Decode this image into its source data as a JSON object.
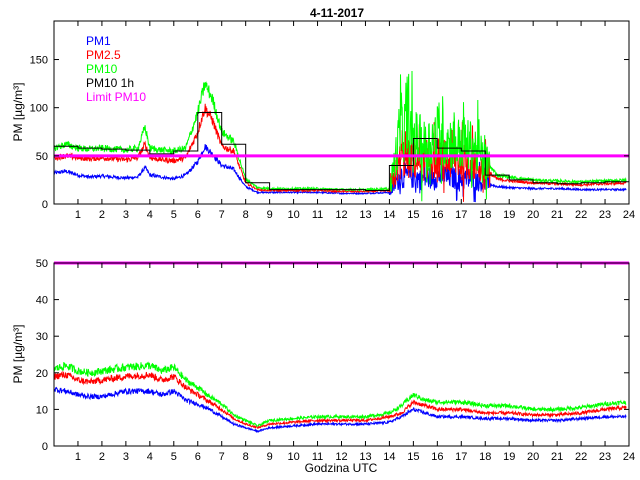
{
  "title": "4-11-2017",
  "chart_data": [
    {
      "type": "line",
      "title": "4-11-2017",
      "ylabel": "PM [µg/m³]",
      "xlabel": "",
      "xlim": [
        0,
        24
      ],
      "ylim": [
        0,
        190
      ],
      "xticks": [
        "1",
        "2",
        "3",
        "4",
        "5",
        "6",
        "7",
        "8",
        "9",
        "10",
        "11",
        "12",
        "13",
        "14",
        "15",
        "16",
        "17",
        "18",
        "19",
        "20",
        "21",
        "22",
        "23",
        "24"
      ],
      "yticks": [
        0,
        50,
        100,
        150
      ],
      "legend": [
        "PM1",
        "PM2.5",
        "PM10",
        "PM10 1h",
        "Limit PM10"
      ],
      "legend_position": "top-left",
      "colors": {
        "PM1": "#0000ff",
        "PM2.5": "#ff0000",
        "PM10": "#00ff00",
        "PM10 1h": "#000000",
        "Limit PM10": "#ff00ff"
      },
      "limit": 50,
      "series": [
        {
          "name": "PM1",
          "x": [
            0,
            0.5,
            1,
            1.5,
            2,
            2.5,
            3,
            3.5,
            3.8,
            4,
            4.5,
            5,
            5.5,
            6,
            6.3,
            6.6,
            7,
            7.5,
            8,
            8.5,
            9,
            10,
            11,
            12,
            13,
            14,
            14.5,
            15,
            15.5,
            16,
            16.5,
            17,
            17.5,
            18,
            18.5,
            19,
            20,
            21,
            22,
            23,
            24
          ],
          "y": [
            32,
            34,
            30,
            28,
            29,
            28,
            27,
            28,
            38,
            30,
            28,
            26,
            30,
            44,
            60,
            52,
            40,
            36,
            18,
            12,
            12,
            12,
            12,
            11,
            11,
            12,
            30,
            28,
            26,
            30,
            28,
            26,
            25,
            22,
            18,
            17,
            16,
            16,
            15,
            15,
            15
          ]
        },
        {
          "name": "PM2.5",
          "x": [
            0,
            0.5,
            1,
            1.5,
            2,
            2.5,
            3,
            3.5,
            3.8,
            4,
            4.5,
            5,
            5.5,
            6,
            6.3,
            6.6,
            7,
            7.5,
            8,
            8.5,
            9,
            10,
            11,
            12,
            13,
            14,
            14.5,
            15,
            15.5,
            16,
            16.5,
            17,
            17.5,
            18,
            18.5,
            19,
            20,
            21,
            22,
            23,
            24
          ],
          "y": [
            48,
            50,
            48,
            47,
            48,
            47,
            46,
            48,
            62,
            48,
            46,
            45,
            48,
            75,
            100,
            88,
            60,
            55,
            22,
            15,
            14,
            14,
            14,
            13,
            13,
            14,
            48,
            45,
            42,
            48,
            45,
            44,
            42,
            35,
            26,
            24,
            22,
            21,
            20,
            21,
            22
          ]
        },
        {
          "name": "PM10",
          "x": [
            0,
            0.5,
            1,
            1.5,
            2,
            2.5,
            3,
            3.5,
            3.8,
            4,
            4.5,
            5,
            5.5,
            6,
            6.3,
            6.6,
            7,
            7.5,
            8,
            8.5,
            9,
            10,
            11,
            12,
            13,
            14,
            14.5,
            15,
            15.5,
            16,
            16.5,
            17,
            17.5,
            18,
            18.5,
            19,
            20,
            21,
            22,
            23,
            24
          ],
          "y": [
            58,
            62,
            58,
            57,
            58,
            57,
            56,
            58,
            80,
            58,
            56,
            55,
            58,
            95,
            125,
            110,
            75,
            65,
            26,
            17,
            16,
            16,
            16,
            15,
            15,
            16,
            80,
            70,
            60,
            72,
            65,
            62,
            60,
            45,
            30,
            28,
            25,
            24,
            23,
            24,
            25
          ]
        },
        {
          "name": "PM10 1h",
          "x": [
            0,
            1,
            2,
            3,
            4,
            5,
            6,
            7,
            8,
            9,
            10,
            11,
            12,
            13,
            14,
            15,
            16,
            17,
            18,
            19,
            20,
            21,
            22,
            23
          ],
          "y": [
            60,
            58,
            57,
            56,
            52,
            55,
            95,
            62,
            22,
            15,
            15,
            15,
            15,
            14,
            40,
            68,
            58,
            55,
            30,
            25,
            22,
            21,
            22,
            23
          ]
        },
        {
          "name": "Limit PM10",
          "x": [
            0,
            24
          ],
          "y": [
            50,
            50
          ]
        }
      ]
    },
    {
      "type": "line",
      "title": "",
      "ylabel": "PM [µg/m³]",
      "xlabel": "Godzina UTC",
      "xlim": [
        0,
        24
      ],
      "ylim": [
        0,
        50
      ],
      "xticks": [
        "1",
        "2",
        "3",
        "4",
        "5",
        "6",
        "7",
        "8",
        "9",
        "10",
        "11",
        "12",
        "13",
        "14",
        "15",
        "16",
        "17",
        "18",
        "19",
        "20",
        "21",
        "22",
        "23",
        "24"
      ],
      "yticks": [
        0,
        10,
        20,
        30,
        40,
        50
      ],
      "limit": 50,
      "series": [
        {
          "name": "PM1",
          "x": [
            0,
            0.5,
            1,
            1.5,
            2,
            3,
            4,
            4.5,
            5,
            5.5,
            6,
            6.5,
            7,
            7.5,
            8,
            8.5,
            9,
            10,
            11,
            12,
            13,
            14,
            14.5,
            15,
            15.5,
            16,
            17,
            18,
            19,
            20,
            21,
            22,
            23,
            23.9
          ],
          "y": [
            15.5,
            15,
            14,
            13.5,
            13.5,
            15,
            15,
            14,
            15,
            12.5,
            11.5,
            10,
            8,
            6,
            5,
            4,
            5,
            5.5,
            6,
            6,
            6,
            6.5,
            8,
            10,
            9,
            8,
            8,
            7.5,
            7.5,
            7,
            7,
            7.5,
            8,
            8
          ]
        },
        {
          "name": "PM2.5",
          "x": [
            0,
            0.5,
            1,
            1.5,
            2,
            3,
            4,
            4.5,
            5,
            5.5,
            6,
            6.5,
            7,
            7.5,
            8,
            8.5,
            9,
            10,
            11,
            12,
            13,
            14,
            14.5,
            15,
            15.5,
            16,
            17,
            18,
            19,
            20,
            21,
            22,
            23,
            23.9
          ],
          "y": [
            19,
            19.5,
            18,
            17.5,
            18,
            19,
            19.5,
            18,
            19,
            16,
            14,
            12,
            10,
            7.5,
            6,
            5,
            6,
            6.5,
            7,
            7,
            7,
            8,
            9,
            12,
            11,
            10,
            10,
            9,
            9,
            8.5,
            8.5,
            9,
            10,
            10.5
          ]
        },
        {
          "name": "PM10",
          "x": [
            0,
            0.5,
            1,
            1.5,
            2,
            3,
            4,
            4.5,
            5,
            5.5,
            6,
            6.5,
            7,
            7.5,
            8,
            8.5,
            9,
            10,
            11,
            12,
            13,
            14,
            14.5,
            15,
            15.5,
            16,
            17,
            18,
            19,
            20,
            21,
            22,
            23,
            23.9
          ],
          "y": [
            21,
            22,
            20.5,
            20,
            20.5,
            21.5,
            22,
            20.5,
            21.5,
            18,
            16,
            13.5,
            11.5,
            8.5,
            7,
            5.5,
            7,
            7.5,
            8,
            8,
            8,
            9,
            11,
            14,
            12.5,
            12,
            12,
            11,
            11,
            10,
            10,
            10.5,
            11.5,
            12
          ]
        },
        {
          "name": "Limit PM10",
          "x": [
            0,
            24
          ],
          "y": [
            50,
            50
          ]
        }
      ]
    }
  ]
}
